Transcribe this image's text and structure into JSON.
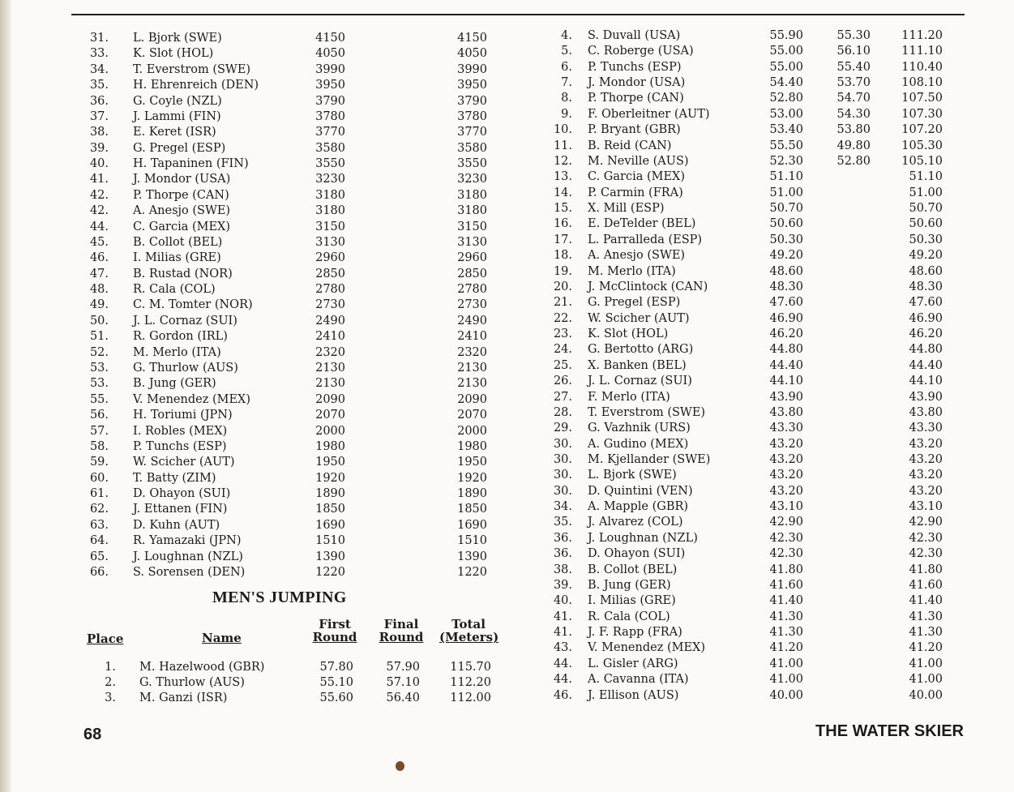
{
  "left_table": {
    "rows": [
      [
        "31.",
        "L. Bjork (SWE)",
        "4150",
        "4150"
      ],
      [
        "33.",
        "K. Slot (HOL)",
        "4050",
        "4050"
      ],
      [
        "34.",
        "T. Everstrom (SWE)",
        "3990",
        "3990"
      ],
      [
        "35.",
        "H. Ehrenreich (DEN)",
        "3950",
        "3950"
      ],
      [
        "36.",
        "G. Coyle (NZL)",
        "3790",
        "3790"
      ],
      [
        "37.",
        "J. Lammi (FIN)",
        "3780",
        "3780"
      ],
      [
        "38.",
        "E. Keret (ISR)",
        "3770",
        "3770"
      ],
      [
        "39.",
        "G. Pregel (ESP)",
        "3580",
        "3580"
      ],
      [
        "40.",
        "H. Tapaninen (FIN)",
        "3550",
        "3550"
      ],
      [
        "41.",
        "J. Mondor (USA)",
        "3230",
        "3230"
      ],
      [
        "42.",
        "P. Thorpe (CAN)",
        "3180",
        "3180"
      ],
      [
        "42.",
        "A. Anesjo (SWE)",
        "3180",
        "3180"
      ],
      [
        "44.",
        "C. Garcia (MEX)",
        "3150",
        "3150"
      ],
      [
        "45.",
        "B. Collot (BEL)",
        "3130",
        "3130"
      ],
      [
        "46.",
        "I. Milias (GRE)",
        "2960",
        "2960"
      ],
      [
        "47.",
        "B. Rustad (NOR)",
        "2850",
        "2850"
      ],
      [
        "48.",
        "R. Cala (COL)",
        "2780",
        "2780"
      ],
      [
        "49.",
        "C. M. Tomter (NOR)",
        "2730",
        "2730"
      ],
      [
        "50.",
        "J. L. Cornaz (SUI)",
        "2490",
        "2490"
      ],
      [
        "51.",
        "R. Gordon (IRL)",
        "2410",
        "2410"
      ],
      [
        "52.",
        "M. Merlo (ITA)",
        "2320",
        "2320"
      ],
      [
        "53.",
        "G. Thurlow (AUS)",
        "2130",
        "2130"
      ],
      [
        "53.",
        "B. Jung (GER)",
        "2130",
        "2130"
      ],
      [
        "55.",
        "V. Menendez (MEX)",
        "2090",
        "2090"
      ],
      [
        "56.",
        "H. Toriumi (JPN)",
        "2070",
        "2070"
      ],
      [
        "57.",
        "I. Robles (MEX)",
        "2000",
        "2000"
      ],
      [
        "58.",
        "P. Tunchs (ESP)",
        "1980",
        "1980"
      ],
      [
        "59.",
        "W. Scicher (AUT)",
        "1950",
        "1950"
      ],
      [
        "60.",
        "T. Batty (ZIM)",
        "1920",
        "1920"
      ],
      [
        "61.",
        "D. Ohayon (SUI)",
        "1890",
        "1890"
      ],
      [
        "62.",
        "J. Ettanen (FIN)",
        "1850",
        "1850"
      ],
      [
        "63.",
        "D. Kuhn (AUT)",
        "1690",
        "1690"
      ],
      [
        "64.",
        "R. Yamazaki (JPN)",
        "1510",
        "1510"
      ],
      [
        "65.",
        "J. Loughnan (NZL)",
        "1390",
        "1390"
      ],
      [
        "66.",
        "S. Sorensen (DEN)",
        "1220",
        "1220"
      ]
    ]
  },
  "mens_jumping": {
    "title": "MEN'S JUMPING",
    "headers": {
      "place": "Place",
      "name": "Name",
      "first": [
        "First",
        "Round"
      ],
      "final": [
        "Final",
        "Round"
      ],
      "total": [
        "Total",
        "(Meters)"
      ]
    },
    "rows": [
      [
        "1.",
        "M. Hazelwood (GBR)",
        "57.80",
        "57.90",
        "115.70"
      ],
      [
        "2.",
        "G. Thurlow (AUS)",
        "55.10",
        "57.10",
        "112.20"
      ],
      [
        "3.",
        "M. Ganzi (ISR)",
        "55.60",
        "56.40",
        "112.00"
      ]
    ]
  },
  "right_table": {
    "rows": [
      [
        "4.",
        "S. Duvall (USA)",
        "55.90",
        "55.30",
        "111.20"
      ],
      [
        "5.",
        "C. Roberge (USA)",
        "55.00",
        "56.10",
        "111.10"
      ],
      [
        "6.",
        "P. Tunchs (ESP)",
        "55.00",
        "55.40",
        "110.40"
      ],
      [
        "7.",
        "J. Mondor (USA)",
        "54.40",
        "53.70",
        "108.10"
      ],
      [
        "8.",
        "P. Thorpe (CAN)",
        "52.80",
        "54.70",
        "107.50"
      ],
      [
        "9.",
        "F. Oberleitner (AUT)",
        "53.00",
        "54.30",
        "107.30"
      ],
      [
        "10.",
        "P. Bryant (GBR)",
        "53.40",
        "53.80",
        "107.20"
      ],
      [
        "11.",
        "B. Reid (CAN)",
        "55.50",
        "49.80",
        "105.30"
      ],
      [
        "12.",
        "M. Neville (AUS)",
        "52.30",
        "52.80",
        "105.10"
      ],
      [
        "13.",
        "C. Garcia (MEX)",
        "51.10",
        "",
        "51.10"
      ],
      [
        "14.",
        "P. Carmin (FRA)",
        "51.00",
        "",
        "51.00"
      ],
      [
        "15.",
        "X. Mill (ESP)",
        "50.70",
        "",
        "50.70"
      ],
      [
        "16.",
        "E. DeTelder (BEL)",
        "50.60",
        "",
        "50.60"
      ],
      [
        "17.",
        "L. Parralleda (ESP)",
        "50.30",
        "",
        "50.30"
      ],
      [
        "18.",
        "A. Anesjo (SWE)",
        "49.20",
        "",
        "49.20"
      ],
      [
        "19.",
        "M. Merlo (ITA)",
        "48.60",
        "",
        "48.60"
      ],
      [
        "20.",
        "J. McClintock (CAN)",
        "48.30",
        "",
        "48.30"
      ],
      [
        "21.",
        "G. Pregel (ESP)",
        "47.60",
        "",
        "47.60"
      ],
      [
        "22.",
        "W. Scicher (AUT)",
        "46.90",
        "",
        "46.90"
      ],
      [
        "23.",
        "K. Slot (HOL)",
        "46.20",
        "",
        "46.20"
      ],
      [
        "24.",
        "G. Bertotto (ARG)",
        "44.80",
        "",
        "44.80"
      ],
      [
        "25.",
        "X. Banken (BEL)",
        "44.40",
        "",
        "44.40"
      ],
      [
        "26.",
        "J. L. Cornaz (SUI)",
        "44.10",
        "",
        "44.10"
      ],
      [
        "27.",
        "F. Merlo (ITA)",
        "43.90",
        "",
        "43.90"
      ],
      [
        "28.",
        "T. Everstrom (SWE)",
        "43.80",
        "",
        "43.80"
      ],
      [
        "29.",
        "G. Vazhnik (URS)",
        "43.30",
        "",
        "43.30"
      ],
      [
        "30.",
        "A. Gudino (MEX)",
        "43.20",
        "",
        "43.20"
      ],
      [
        "30.",
        "M. Kjellander (SWE)",
        "43.20",
        "",
        "43.20"
      ],
      [
        "30.",
        "L. Bjork (SWE)",
        "43.20",
        "",
        "43.20"
      ],
      [
        "30.",
        "D. Quintini (VEN)",
        "43.20",
        "",
        "43.20"
      ],
      [
        "34.",
        "A. Mapple (GBR)",
        "43.10",
        "",
        "43.10"
      ],
      [
        "35.",
        "J. Alvarez (COL)",
        "42.90",
        "",
        "42.90"
      ],
      [
        "36.",
        "J. Loughnan (NZL)",
        "42.30",
        "",
        "42.30"
      ],
      [
        "36.",
        "D. Ohayon (SUI)",
        "42.30",
        "",
        "42.30"
      ],
      [
        "38.",
        "B. Collot (BEL)",
        "41.80",
        "",
        "41.80"
      ],
      [
        "39.",
        "B. Jung (GER)",
        "41.60",
        "",
        "41.60"
      ],
      [
        "40.",
        "I. Milias (GRE)",
        "41.40",
        "",
        "41.40"
      ],
      [
        "41.",
        "R. Cala (COL)",
        "41.30",
        "",
        "41.30"
      ],
      [
        "41.",
        "J. F. Rapp (FRA)",
        "41.30",
        "",
        "41.30"
      ],
      [
        "43.",
        "V. Menendez (MEX)",
        "41.20",
        "",
        "41.20"
      ],
      [
        "44.",
        "L. Gisler (ARG)",
        "41.00",
        "",
        "41.00"
      ],
      [
        "44.",
        "A. Cavanna (ITA)",
        "41.00",
        "",
        "41.00"
      ],
      [
        "46.",
        "J. Ellison (AUS)",
        "40.00",
        "",
        "40.00"
      ]
    ]
  },
  "footer": {
    "page_number": "68",
    "publication": "THE WATER SKIER"
  }
}
